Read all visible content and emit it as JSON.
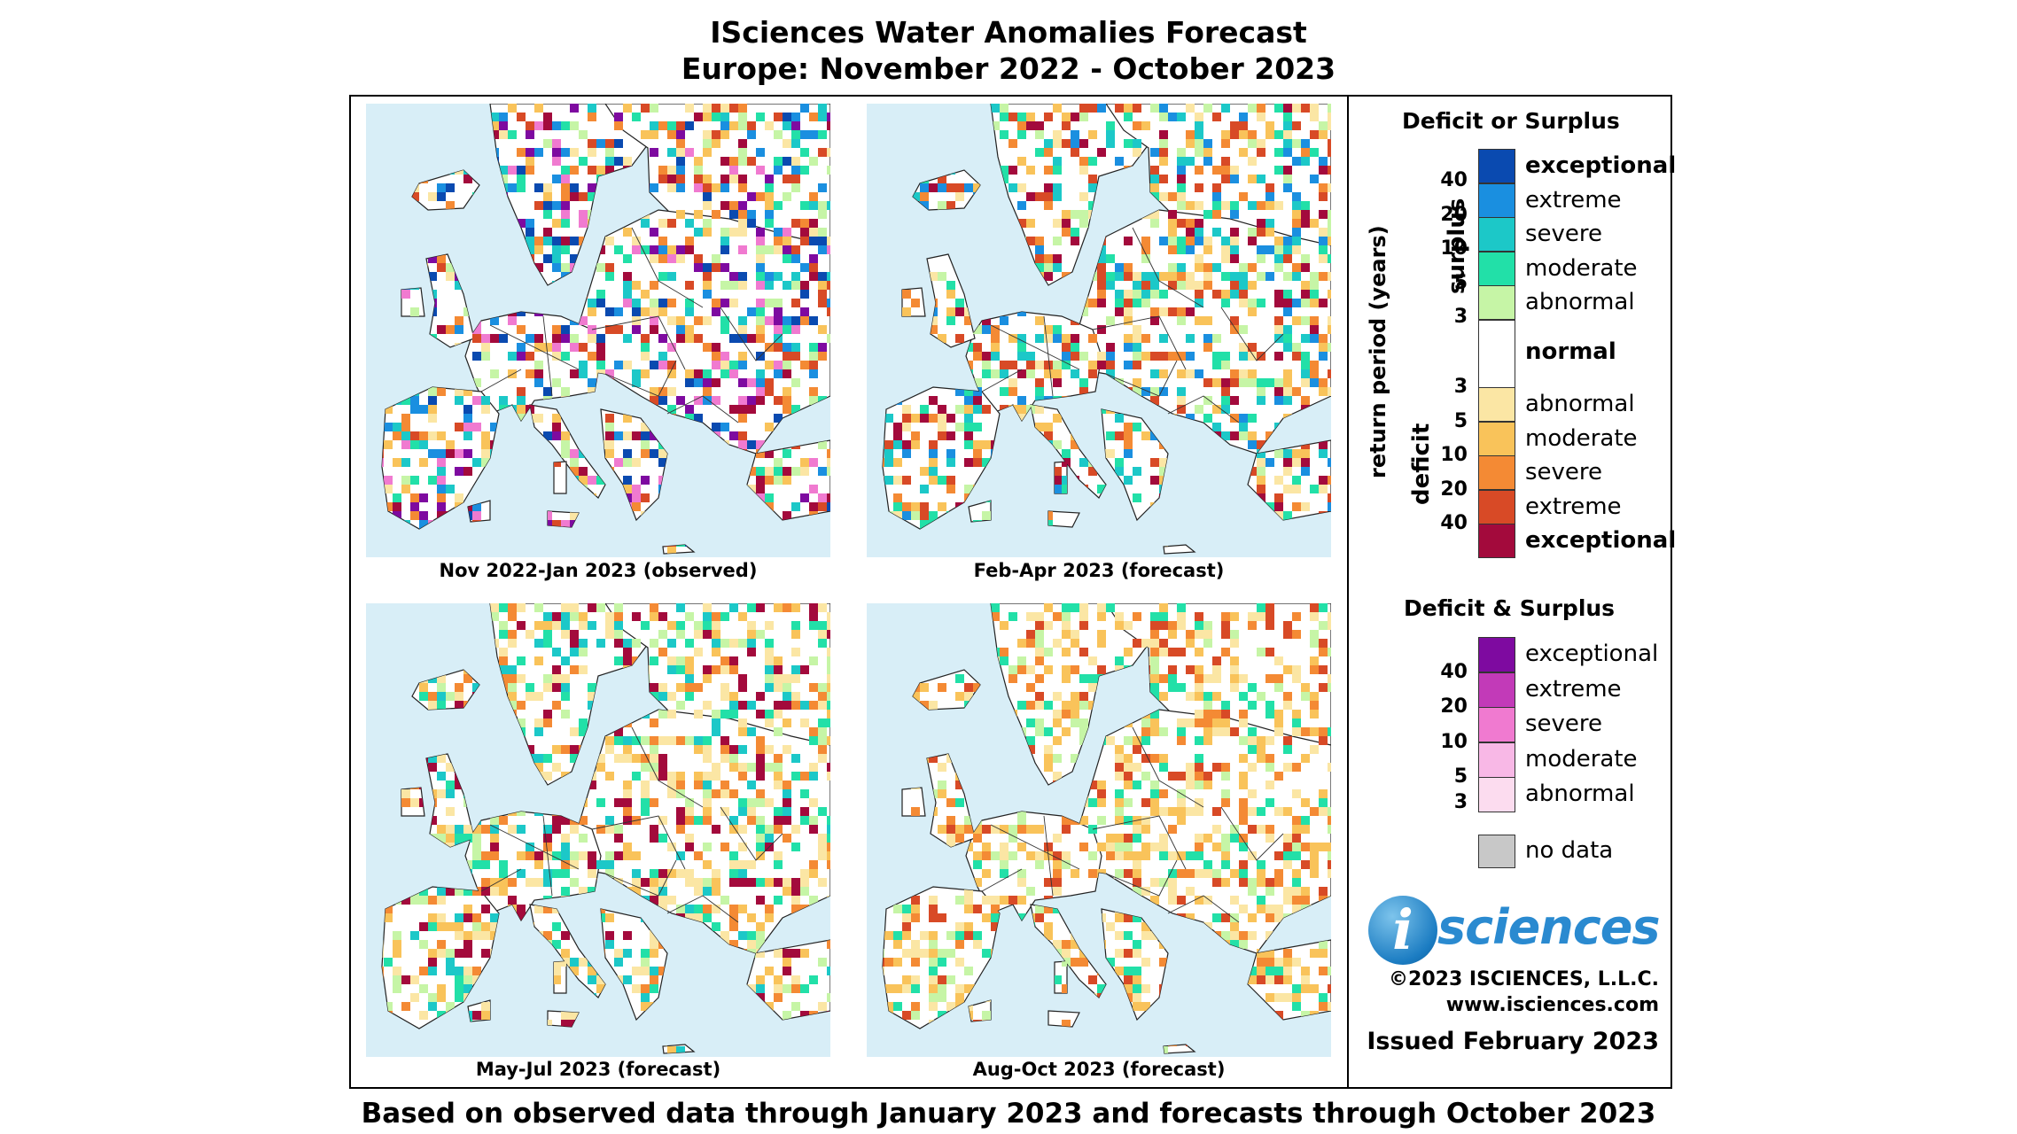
{
  "title": {
    "line1": "ISciences Water Anomalies Forecast",
    "line2": "Europe: November 2022 - October 2023"
  },
  "maps": [
    {
      "caption": "Nov 2022-Jan 2023 (observed)"
    },
    {
      "caption": "Feb-Apr 2023 (forecast)"
    },
    {
      "caption": "May-Jul 2023 (forecast)"
    },
    {
      "caption": "Aug-Oct 2023 (forecast)"
    }
  ],
  "legend": {
    "deficit_or_surplus": {
      "heading": "Deficit or Surplus",
      "axis_label": "return period (years)",
      "surplus_label": "surplus",
      "deficit_label": "deficit",
      "normal_label": "normal",
      "surplus_rows": [
        {
          "label": "exceptional",
          "number": "40",
          "color": "#0a4ab0"
        },
        {
          "label": "extreme",
          "number": "20",
          "color": "#1a8fe0"
        },
        {
          "label": "severe",
          "number": "10",
          "color": "#1cc8c8"
        },
        {
          "label": "moderate",
          "number": "5",
          "color": "#22e0a8"
        },
        {
          "label": "abnormal",
          "number": "3",
          "color": "#c6f5a6"
        }
      ],
      "deficit_rows": [
        {
          "label": "abnormal",
          "number": "3",
          "color": "#fbe6a4"
        },
        {
          "label": "moderate",
          "number": "5",
          "color": "#f9c35a"
        },
        {
          "label": "severe",
          "number": "10",
          "color": "#f48a34"
        },
        {
          "label": "extreme",
          "number": "20",
          "color": "#d84a26"
        },
        {
          "label": "exceptional",
          "number": "40",
          "color": "#a30a3c"
        }
      ]
    },
    "deficit_and_surplus": {
      "heading": "Deficit & Surplus",
      "rows": [
        {
          "label": "exceptional",
          "color": "#7e0aa0"
        },
        {
          "label": "extreme",
          "number": "40",
          "color": "#c23ab8"
        },
        {
          "label": "severe",
          "number": "20",
          "color": "#f07ad0"
        },
        {
          "label": "moderate",
          "number": "10",
          "color": "#f8b8e6"
        },
        {
          "label": "abnormal",
          "number": "5",
          "color": "#fcdcef"
        }
      ],
      "bottom_number": "3"
    },
    "no_data": {
      "label": "no data",
      "color": "#c8c8c8"
    }
  },
  "brand": {
    "logo_letter": "i",
    "logo_word": "sciences",
    "copyright": "©2023 ISCIENCES, L.L.C.",
    "website": "www.isciences.com",
    "issued": "Issued February 2023"
  },
  "footer": "Based on observed data through January 2023 and forecasts through October 2023"
}
